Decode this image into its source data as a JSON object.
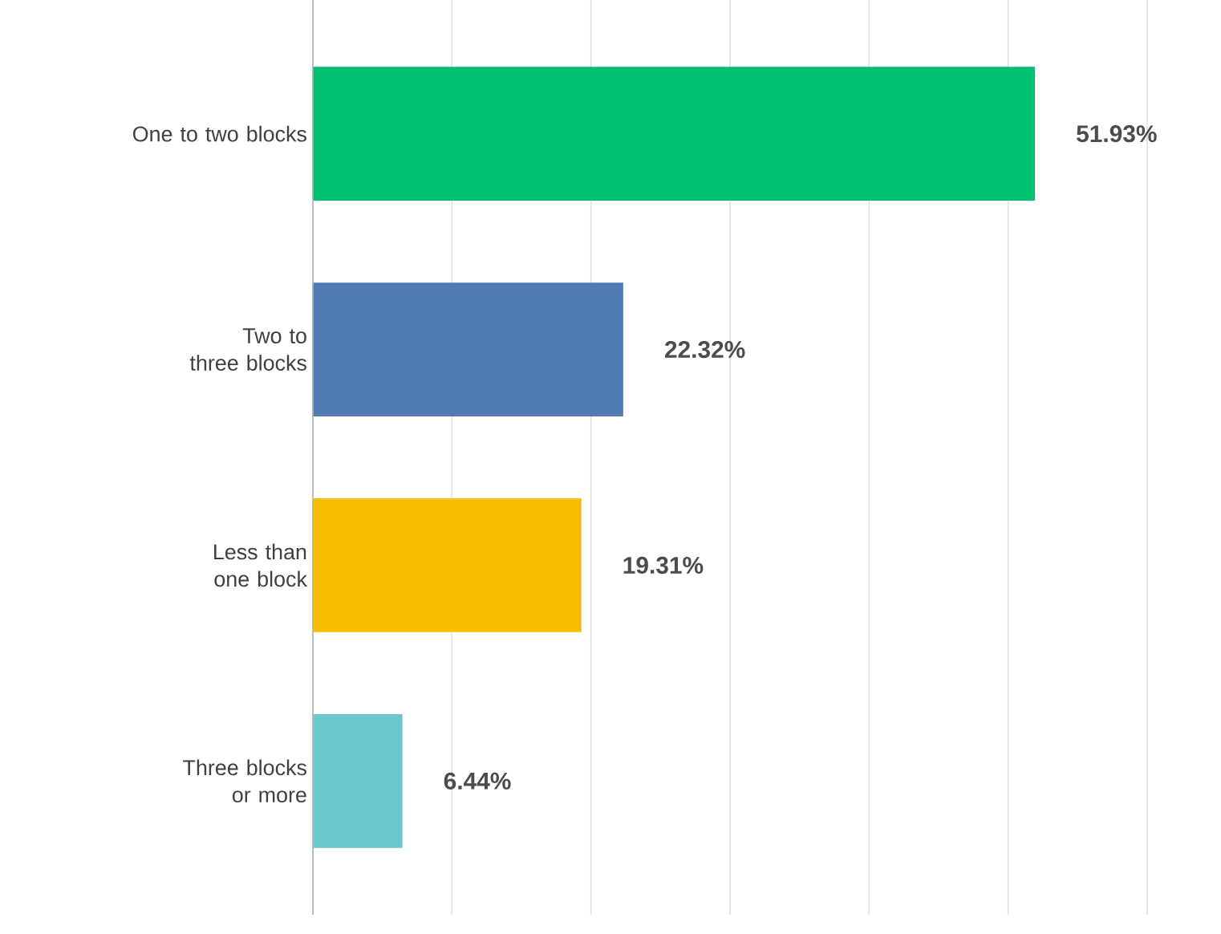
{
  "chart_data": {
    "type": "bar",
    "orientation": "horizontal",
    "categories": [
      "One to two blocks",
      "Two to three blocks",
      "Less than one block",
      "Three blocks or more"
    ],
    "values": [
      51.93,
      22.32,
      19.31,
      6.44
    ],
    "value_labels": [
      "51.93%",
      "22.32%",
      "19.31%",
      "6.44%"
    ],
    "colors": [
      "#00bf6f",
      "#507cb6",
      "#f9be00",
      "#6bc8cd"
    ],
    "xlim": [
      0,
      60
    ],
    "xticks": [
      {
        "value": 0,
        "label": null
      },
      {
        "value": 10,
        "label": null
      },
      {
        "value": 20,
        "label": null
      },
      {
        "value": 30,
        "label": null
      },
      {
        "value": 40,
        "label": null
      },
      {
        "value": 50,
        "label": null
      },
      {
        "value": 60,
        "label": null
      }
    ],
    "grid": "x",
    "tick_labels": "y"
  }
}
